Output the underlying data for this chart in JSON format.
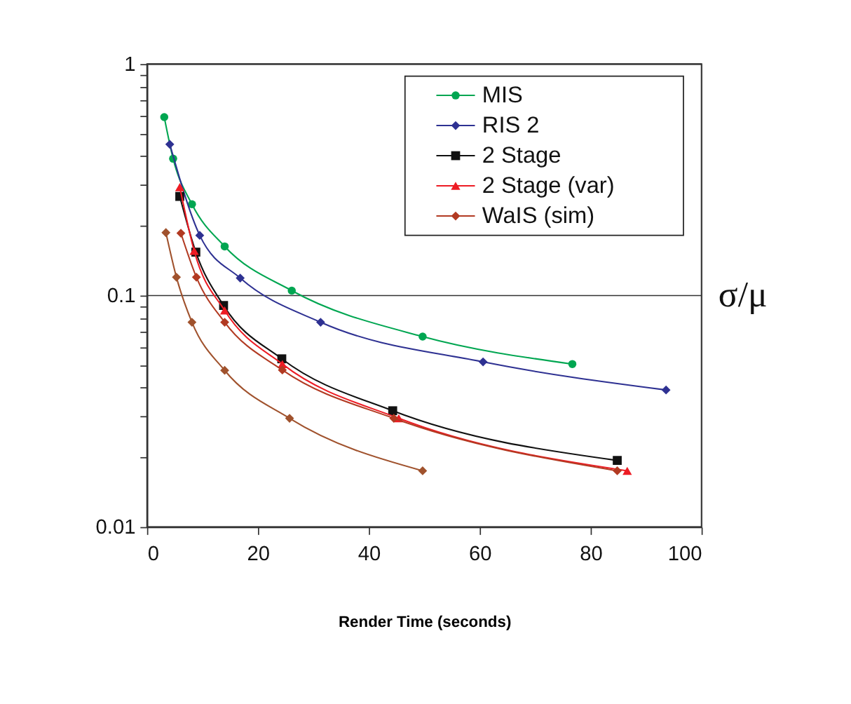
{
  "chart_data": {
    "type": "line",
    "xlabel": "Render Time (seconds)",
    "ylabel": "σ/μ",
    "xlim": [
      0,
      100
    ],
    "xticks": [
      0,
      20,
      40,
      60,
      80,
      100
    ],
    "ylim": [
      0.01,
      1
    ],
    "yticks": [
      0.01,
      {
        "value": 0.02,
        "label": null
      },
      {
        "value": 0.03,
        "label": null
      },
      {
        "value": 0.04,
        "label": null
      },
      {
        "value": 0.05,
        "label": null
      },
      {
        "value": 0.06,
        "label": null
      },
      {
        "value": 0.07,
        "label": null
      },
      {
        "value": 0.08,
        "label": null
      },
      {
        "value": 0.09,
        "label": null
      },
      0.1,
      {
        "value": 0.2,
        "label": null
      },
      {
        "value": 0.3,
        "label": null
      },
      {
        "value": 0.4,
        "label": null
      },
      {
        "value": 0.5,
        "label": null
      },
      {
        "value": 0.6,
        "label": null
      },
      {
        "value": 0.7,
        "label": null
      },
      {
        "value": 0.8,
        "label": null
      },
      {
        "value": 0.9,
        "label": null
      },
      1
    ],
    "log": "y",
    "grid": "y",
    "legend": "top right",
    "line_style": "solid",
    "series": [
      {
        "name": "MIS",
        "color": "#00a651",
        "marker": "circle",
        "x": [
          3.1,
          4.7,
          8.1,
          14.0,
          26.1,
          49.7,
          76.7
        ],
        "values": [
          0.59,
          0.39,
          0.248,
          0.163,
          0.105,
          0.0665,
          0.0506
        ]
      },
      {
        "name": "RIS 2",
        "color": "#2e3192",
        "marker": "diamond",
        "x": [
          4.1,
          9.5,
          16.8,
          31.3,
          60.6,
          93.6
        ],
        "values": [
          0.45,
          0.182,
          0.119,
          0.0767,
          0.0517,
          0.0391
        ]
      },
      {
        "name": "2 Stage",
        "color": "#111111",
        "marker": "square",
        "x": [
          5.9,
          8.8,
          13.8,
          24.3,
          44.3,
          84.8
        ],
        "values": [
          0.268,
          0.154,
          0.0906,
          0.0533,
          0.0318,
          0.0194
        ]
      },
      {
        "name": "2 Stage (var)",
        "color": "#ed1c24",
        "marker": "triangle",
        "x": [
          5.9,
          8.5,
          14.0,
          24.4,
          45.4,
          86.6
        ],
        "values": [
          0.294,
          0.156,
          0.0862,
          0.0506,
          0.0295,
          0.0175
        ]
      },
      {
        "color": "#a0522d",
        "marker": "diamond",
        "x": [
          3.4,
          5.3,
          8.1,
          14.0,
          25.7,
          49.7
        ],
        "values": [
          0.187,
          0.12,
          0.0767,
          0.0475,
          0.0295,
          0.0175
        ]
      },
      {
        "name": "WaIS (sim)",
        "color": "#b23a22",
        "marker": "diamond",
        "x": [
          6.1,
          8.9,
          14.0,
          24.4,
          44.5,
          84.8
        ],
        "values": [
          0.186,
          0.12,
          0.0767,
          0.0477,
          0.0295,
          0.0175
        ]
      }
    ]
  }
}
